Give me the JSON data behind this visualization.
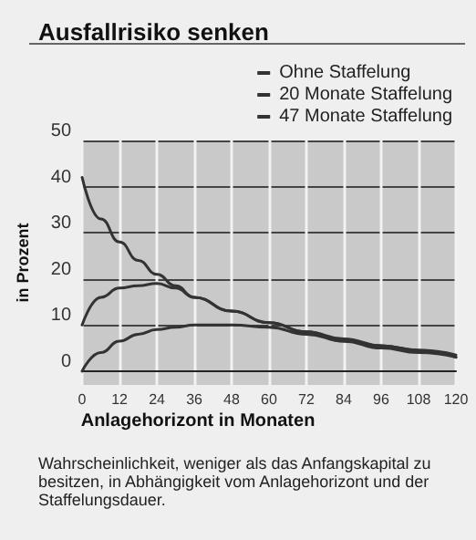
{
  "chart_data": {
    "type": "line",
    "title": "Ausfallrisiko senken",
    "xlabel": "Anlagehorizont in Monaten",
    "ylabel": "in Prozent",
    "x": [
      0,
      6,
      12,
      18,
      24,
      30,
      36,
      48,
      60,
      72,
      84,
      96,
      108,
      120
    ],
    "series": [
      {
        "name": "Ohne Staffelung",
        "color": "#333333",
        "values": [
          42,
          33,
          28,
          24,
          21,
          18.5,
          16,
          13,
          10.5,
          8.5,
          7,
          5.5,
          4.5,
          3.5
        ]
      },
      {
        "name": "20 Monate Staffelung",
        "color": "#333333",
        "values": [
          10,
          16,
          18,
          18.5,
          19,
          18,
          16,
          13,
          10.5,
          8.5,
          6.5,
          5.5,
          4.5,
          3
        ]
      },
      {
        "name": "47 Monate Staffelung",
        "color": "#333333",
        "values": [
          0,
          4,
          6.5,
          8,
          9,
          9.5,
          10,
          10,
          9.5,
          8,
          6.5,
          5,
          4,
          3
        ]
      }
    ],
    "xlim": [
      0,
      120
    ],
    "xticks": [
      0,
      12,
      24,
      36,
      48,
      60,
      72,
      84,
      96,
      108,
      120
    ],
    "ylim": [
      -3,
      50
    ],
    "yticks": [
      0,
      10,
      20,
      30,
      40,
      50
    ],
    "grid": true,
    "legend": "top right",
    "marker": "none",
    "line_style": "solid",
    "annotations": [
      "Wahrscheinlichkeit, weniger als das Anfangskapital zu besitzen, in Abhängigkeit vom Anlagehorizont und der Staffelungsdauer."
    ]
  }
}
